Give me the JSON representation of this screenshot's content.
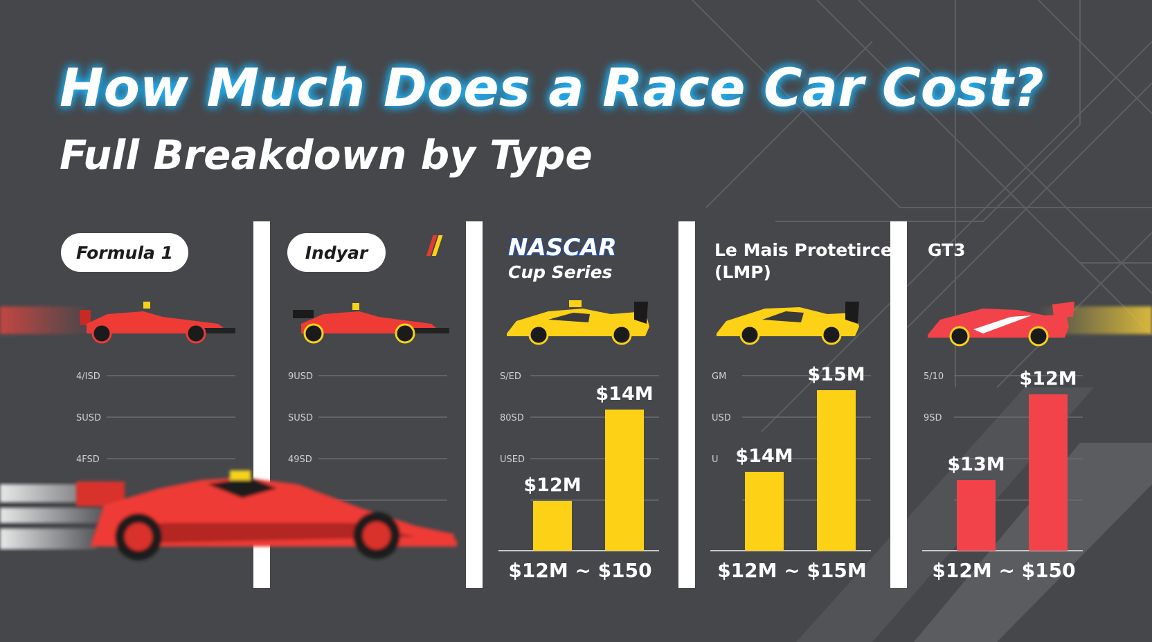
{
  "title": "How Much Does a Race Car Cost?",
  "subtitle": "Full Breakdown by Type",
  "colors": {
    "background": "#45474b",
    "glow": "#1fb6ff",
    "f1_red": "#ee3b36",
    "nascar_yellow": "#fcd116",
    "gt3_red": "#f2434a"
  },
  "chart_data": [
    {
      "type": "bar",
      "category": "Formula 1",
      "tick_labels": [
        "4/ISD",
        "SUSD",
        "4FSD"
      ],
      "values": [],
      "bar_labels": [],
      "range_label": ""
    },
    {
      "type": "bar",
      "category": "Indyar",
      "tick_labels": [
        "9USD",
        "SUSD",
        "49SD"
      ],
      "values": [],
      "bar_labels": [],
      "range_label": ""
    },
    {
      "type": "bar",
      "category": "NASCAR",
      "category_line2": "Cup Series",
      "tick_labels": [
        "S/ED",
        "80SD",
        "USED"
      ],
      "values": [
        12,
        14
      ],
      "bar_labels": [
        "$12M",
        "$14M"
      ],
      "range_label": "$12M ~ $150"
    },
    {
      "type": "bar",
      "category": "Le Mais Protetirce",
      "category_line2": "(LMP)",
      "tick_labels": [
        "GM",
        "USD",
        "U"
      ],
      "values": [
        14,
        15
      ],
      "bar_labels": [
        "$14M",
        "$15M"
      ],
      "range_label": "$12M ~ $15M"
    },
    {
      "type": "bar",
      "category": "GT3",
      "tick_labels": [
        "5/10",
        "9SD"
      ],
      "values": [
        13,
        12
      ],
      "bar_labels": [
        "$13M",
        "$12M"
      ],
      "range_label": "$12M ~ $150"
    }
  ]
}
